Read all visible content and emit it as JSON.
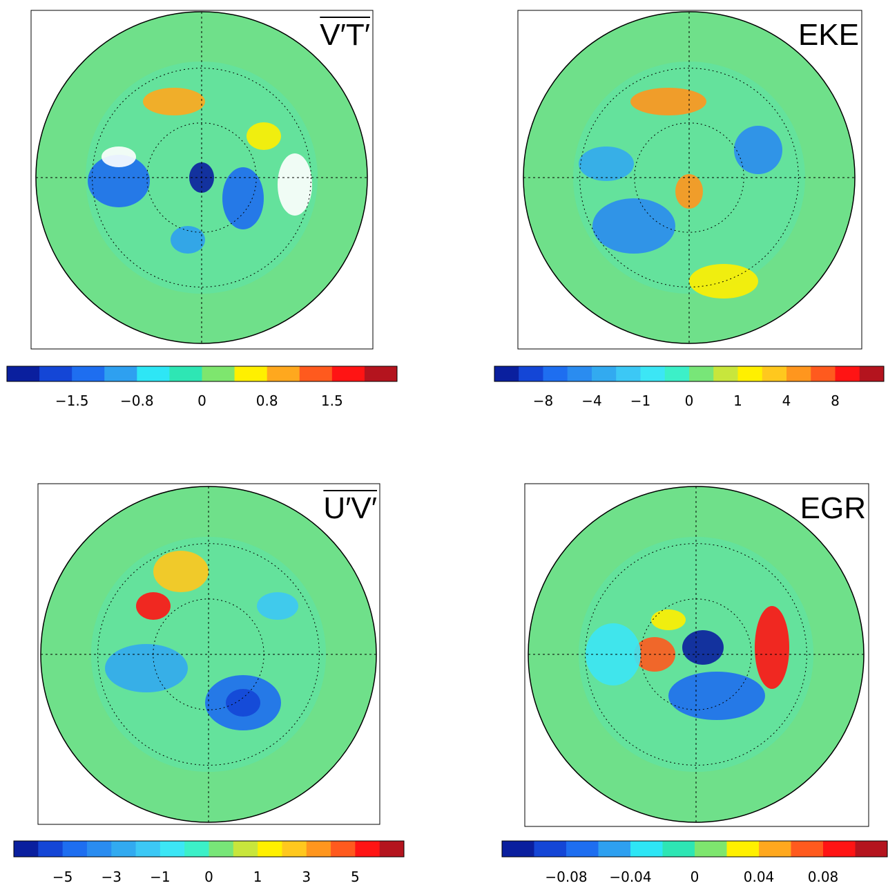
{
  "panels": [
    {
      "label": "V′T′",
      "overline": true,
      "colorbar": {
        "colors": [
          "#0a1f9e",
          "#1446d6",
          "#1e6ef0",
          "#2ea0f0",
          "#2ee6f5",
          "#2ee6b4",
          "#7ee66e",
          "#fff000",
          "#ffa81e",
          "#ff5a1e",
          "#ff1414",
          "#b4141e"
        ],
        "ticks": [
          {
            "value": -1.5,
            "label": "−1.5"
          },
          {
            "value": -0.8,
            "label": "−0.8"
          },
          0,
          0.8,
          1.5
        ]
      }
    },
    {
      "label": "EKE",
      "overline": false,
      "colorbar": {
        "colors": [
          "#0a1f9e",
          "#1446d6",
          "#1e6ef0",
          "#2a8cf0",
          "#32aaf0",
          "#3cc8f5",
          "#3ce6f5",
          "#3cf0c8",
          "#78e678",
          "#c8e63c",
          "#fff000",
          "#ffc81e",
          "#ff961e",
          "#ff5a1e",
          "#ff1414",
          "#b4141e"
        ],
        "ticks": [
          {
            "value": -8,
            "label": "−8"
          },
          {
            "value": -4,
            "label": "−4"
          },
          {
            "value": -1,
            "label": "−1"
          },
          0,
          1,
          4,
          8
        ]
      }
    },
    {
      "label": "U′V′",
      "overline": true,
      "colorbar": {
        "colors": [
          "#0a1f9e",
          "#1446d6",
          "#1e6ef0",
          "#2a8cf0",
          "#32aaf0",
          "#3cc8f5",
          "#3ce6f5",
          "#3cf0c8",
          "#78e678",
          "#c8e63c",
          "#fff000",
          "#ffc81e",
          "#ff961e",
          "#ff5a1e",
          "#ff1414",
          "#b4141e"
        ],
        "ticks": [
          {
            "value": -5,
            "label": "−5"
          },
          {
            "value": -3,
            "label": "−3"
          },
          {
            "value": -1,
            "label": "−1"
          },
          0,
          1,
          3,
          5
        ]
      }
    },
    {
      "label": "EGR",
      "overline": false,
      "colorbar": {
        "colors": [
          "#0a1f9e",
          "#1446d6",
          "#1e6ef0",
          "#2ea0f0",
          "#2ee6f5",
          "#2ee6b4",
          "#7ee66e",
          "#fff000",
          "#ffa81e",
          "#ff5a1e",
          "#ff1414",
          "#b4141e"
        ],
        "ticks": [
          {
            "value": -0.08,
            "label": "−0.08"
          },
          {
            "value": -0.04,
            "label": "−0.04"
          },
          0,
          0.04,
          0.08
        ]
      }
    }
  ]
}
